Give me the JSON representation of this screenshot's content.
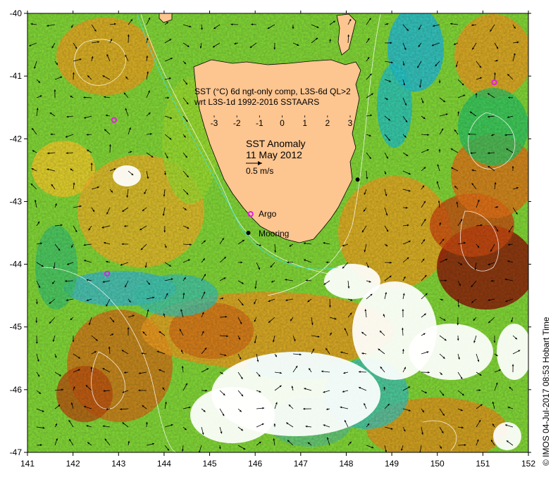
{
  "map": {
    "lon_ticks": [
      141,
      142,
      143,
      144,
      145,
      146,
      147,
      148,
      149,
      150,
      151,
      152
    ],
    "lat_ticks": [
      -40,
      -41,
      -42,
      -43,
      -44,
      -45,
      -46,
      -47
    ],
    "lon_range": [
      141,
      152
    ],
    "lat_range": [
      -47,
      -40
    ]
  },
  "legend": {
    "line1": "SST (°C) 6d ngt-only comp, L3S-6d QL>2",
    "line2": "wrt L3S-1d 1992-2016 SSTAARS",
    "ticks": [
      "-3",
      "-2",
      "-1",
      "0",
      "1",
      "2",
      "3"
    ],
    "colors": [
      "#10109a",
      "#1f57e6",
      "#1aa9e6",
      "#22d08a",
      "#4fc430",
      "#b5d62a",
      "#f2e620",
      "#f0a020",
      "#c84a10",
      "#8c1208"
    ]
  },
  "title": {
    "line1": "SST Anomaly",
    "line2": "11 May 2012",
    "scale_label": "0.5 m/s"
  },
  "markers": {
    "argo_label": "Argo",
    "mooring_label": "Mooring",
    "argo_color": "#e020e0",
    "mooring_color": "#000000",
    "argo_points": [
      [
        145.9,
        -43.2
      ],
      [
        142.9,
        -41.7
      ],
      [
        142.75,
        -44.15
      ],
      [
        151.25,
        -41.1
      ]
    ],
    "mooring_points": [
      [
        145.85,
        -43.5
      ],
      [
        148.25,
        -42.65
      ]
    ]
  },
  "credit": "© IMOS 04-Jul-2017 08:53 Hobart Time"
}
